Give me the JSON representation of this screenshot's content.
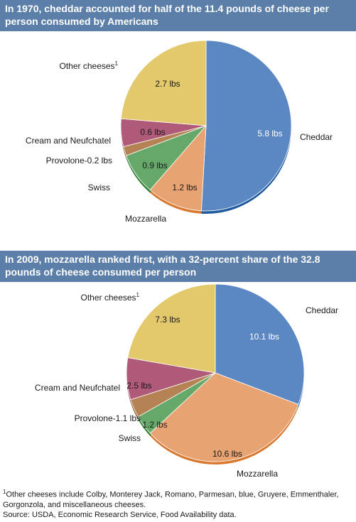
{
  "chart_data": [
    {
      "type": "pie",
      "title": "In 1970, cheddar accounted for half of the 11.4 pounds of cheese per person consumed by Americans",
      "unit": "lbs",
      "slices": [
        {
          "name": "Cheddar",
          "value": 5.8,
          "value_label": "5.8 lbs",
          "color": "#5b88c2",
          "edge": "#1f5c9e"
        },
        {
          "name": "Mozzarella",
          "value": 1.2,
          "value_label": "1.2 lbs",
          "color": "#e8a372",
          "edge": "#d9782f"
        },
        {
          "name": "Swiss",
          "value": 0.9,
          "value_label": "0.9 lbs",
          "color": "#66a86a",
          "edge": "#2f7f35"
        },
        {
          "name": "Provolone-0.2 lbs",
          "value": 0.2,
          "value_label": "",
          "color": "#b58253",
          "edge": "#8a5a2c"
        },
        {
          "name": "Cream and Neufchatel",
          "value": 0.6,
          "value_label": "0.6 lbs",
          "color": "#b05a7a",
          "edge": "#8a3558"
        },
        {
          "name": "Other cheeses",
          "name_sup": "1",
          "value": 2.7,
          "value_label": "2.7 lbs",
          "color": "#e3c96c",
          "edge": "#c8a93a"
        }
      ]
    },
    {
      "type": "pie",
      "title": "In 2009, mozzarella ranked first, with a 32-percent share of the 32.8 pounds of cheese consumed per person",
      "unit": "lbs",
      "slices": [
        {
          "name": "Cheddar",
          "value": 10.1,
          "value_label": "10.1 lbs",
          "color": "#5b88c2",
          "edge": "#1f5c9e"
        },
        {
          "name": "Mozzarella",
          "value": 10.6,
          "value_label": "10.6 lbs",
          "color": "#e8a372",
          "edge": "#d9782f"
        },
        {
          "name": "Swiss",
          "value": 1.2,
          "value_label": "1.2 lbs",
          "color": "#66a86a",
          "edge": "#2f7f35"
        },
        {
          "name": "Provolone-1.1 lbs",
          "value": 1.1,
          "value_label": "",
          "color": "#b58253",
          "edge": "#8a5a2c"
        },
        {
          "name": "Cream and Neufchatel",
          "value": 2.5,
          "value_label": "2.5 lbs",
          "color": "#b05a7a",
          "edge": "#8a3558"
        },
        {
          "name": "Other cheeses",
          "name_sup": "1",
          "value": 7.3,
          "value_label": "7.3 lbs",
          "color": "#e3c96c",
          "edge": "#c8a93a"
        }
      ]
    }
  ],
  "footnote": {
    "marker": "1",
    "text": "Other cheeses include Colby, Monterey Jack, Romano, Parmesan, blue, Gruyere, Emmenthaler, Gorgonzola, and miscellaneous cheeses."
  },
  "source": "Source:  USDA, Economic Research Service, Food Availability data."
}
